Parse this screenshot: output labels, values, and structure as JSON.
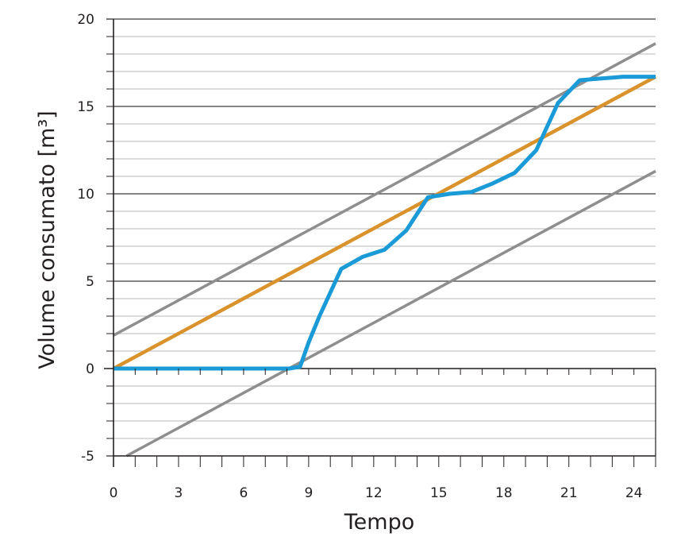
{
  "chart_data": {
    "type": "line",
    "title": "",
    "xlabel": "Tempo",
    "ylabel": "Volume consumato [m³]",
    "xlim": [
      0,
      25
    ],
    "ylim": [
      -5,
      20
    ],
    "x_ticks": [
      0,
      3,
      6,
      9,
      12,
      15,
      18,
      21,
      24
    ],
    "x_tick_labels": [
      "0",
      "3",
      "6",
      "9",
      "12",
      "15",
      "18",
      "21",
      "24"
    ],
    "y_ticks": [
      -5,
      0,
      5,
      10,
      15,
      20
    ],
    "y_tick_labels": [
      "-5",
      "0",
      "5",
      "10",
      "15",
      "20"
    ],
    "grid": {
      "horizontal_minor_step": 1,
      "horizontal_major_step": 5,
      "vertical": false
    },
    "legend": "none",
    "colors": {
      "consumption": "#1a9ad6",
      "trend": "#d9922c",
      "bounds": "#8e8e8e",
      "grid_minor": "#b9b9b9",
      "grid_major": "#3b3b3b",
      "axis": "#231f20"
    },
    "series": [
      {
        "role": "consumption",
        "color": "#1a9ad6",
        "x": [
          0,
          2,
          4,
          6,
          7.5,
          8.1,
          8.6,
          9.0,
          9.5,
          10.5,
          11.5,
          12.5,
          13.5,
          14.5,
          15.5,
          16.5,
          17.5,
          18.5,
          19.5,
          20.5,
          21.5,
          22.5,
          23.5,
          25.0
        ],
        "y": [
          0,
          0,
          0,
          0,
          0,
          0,
          0.1,
          1.5,
          3.0,
          5.7,
          6.4,
          6.8,
          7.9,
          9.8,
          10.0,
          10.1,
          10.6,
          11.2,
          12.5,
          15.2,
          16.5,
          16.6,
          16.7,
          16.7
        ]
      },
      {
        "role": "trend",
        "color": "#d9922c",
        "x": [
          0,
          25
        ],
        "y": [
          0,
          16.7
        ]
      },
      {
        "role": "upper-bound",
        "color": "#8e8e8e",
        "x": [
          0,
          25
        ],
        "y": [
          1.9,
          18.6
        ]
      },
      {
        "role": "lower-bound",
        "color": "#8e8e8e",
        "x": [
          0.6,
          25
        ],
        "y": [
          -5.0,
          11.3
        ]
      }
    ]
  }
}
